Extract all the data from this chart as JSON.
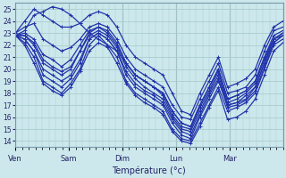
{
  "xlabel": "Température (°c)",
  "bg_color": "#cce8ec",
  "line_color": "#2233aa",
  "grid_color": "#aacccc",
  "ylim": [
    13.5,
    25.5
  ],
  "yticks": [
    14,
    15,
    16,
    17,
    18,
    19,
    20,
    21,
    22,
    23,
    24,
    25
  ],
  "x_day_labels": [
    "Ven",
    "Sam",
    "Dim",
    "Lun",
    "Mar"
  ],
  "x_day_positions": [
    0,
    24,
    48,
    72,
    96
  ],
  "xlim": [
    0,
    120
  ],
  "lines": [
    [
      22.8,
      22.5,
      21.5,
      19.5,
      19.0,
      18.5,
      19.2,
      20.5,
      22.5,
      23.0,
      22.5,
      21.5,
      19.5,
      18.5,
      18.0,
      17.5,
      17.0,
      15.5,
      14.5,
      14.2,
      16.0,
      17.5,
      19.0,
      17.0,
      17.2,
      17.5,
      18.5,
      20.5,
      22.5,
      22.8
    ],
    [
      22.8,
      22.2,
      21.0,
      19.0,
      18.5,
      18.0,
      18.8,
      20.0,
      22.0,
      22.8,
      22.0,
      21.0,
      19.0,
      18.0,
      17.5,
      17.0,
      16.5,
      15.0,
      14.2,
      14.0,
      15.5,
      17.0,
      18.5,
      16.5,
      16.8,
      17.2,
      18.0,
      20.0,
      22.0,
      22.5
    ],
    [
      22.8,
      22.8,
      22.0,
      20.5,
      20.0,
      19.5,
      20.0,
      21.5,
      23.0,
      23.5,
      23.0,
      22.0,
      20.5,
      19.5,
      19.0,
      18.5,
      18.0,
      16.5,
      15.5,
      15.2,
      17.0,
      18.5,
      20.0,
      17.5,
      17.8,
      18.2,
      19.0,
      21.0,
      22.8,
      23.2
    ],
    [
      23.0,
      23.5,
      23.8,
      22.5,
      22.0,
      21.5,
      21.8,
      22.5,
      23.5,
      23.8,
      23.5,
      22.5,
      21.0,
      20.0,
      19.5,
      19.0,
      18.5,
      17.0,
      16.0,
      15.8,
      17.5,
      19.0,
      20.5,
      18.0,
      18.2,
      18.5,
      19.5,
      21.5,
      23.2,
      23.5
    ],
    [
      23.0,
      24.0,
      25.0,
      24.5,
      24.0,
      23.5,
      23.5,
      23.8,
      24.5,
      24.8,
      24.5,
      23.5,
      22.0,
      21.0,
      20.5,
      20.0,
      19.5,
      18.0,
      16.5,
      16.2,
      18.0,
      19.5,
      21.0,
      18.5,
      18.8,
      19.2,
      20.0,
      22.0,
      23.5,
      24.0
    ],
    [
      22.8,
      23.2,
      24.5,
      24.8,
      25.2,
      25.0,
      24.5,
      23.8,
      23.0,
      22.5,
      22.0,
      21.5,
      20.5,
      19.5,
      19.0,
      18.5,
      18.0,
      16.5,
      15.5,
      15.2,
      17.0,
      18.5,
      20.0,
      17.5,
      17.8,
      18.2,
      19.0,
      21.0,
      22.5,
      23.0
    ],
    [
      22.8,
      22.5,
      21.5,
      20.0,
      19.5,
      19.0,
      19.5,
      20.8,
      22.5,
      23.0,
      22.5,
      21.5,
      19.8,
      18.8,
      18.2,
      17.8,
      17.2,
      15.8,
      14.8,
      14.5,
      16.2,
      17.8,
      19.2,
      16.8,
      17.0,
      17.4,
      18.2,
      20.2,
      22.2,
      22.8
    ],
    [
      22.8,
      22.0,
      20.5,
      18.8,
      18.2,
      17.8,
      18.5,
      19.8,
      21.5,
      22.2,
      21.8,
      20.5,
      18.8,
      17.8,
      17.2,
      16.8,
      16.2,
      14.8,
      14.0,
      13.8,
      15.2,
      16.8,
      18.2,
      15.8,
      16.0,
      16.5,
      17.5,
      19.5,
      21.5,
      22.2
    ],
    [
      22.8,
      23.0,
      22.5,
      21.2,
      20.8,
      20.2,
      20.8,
      22.0,
      23.2,
      23.5,
      23.2,
      22.2,
      20.5,
      19.5,
      19.0,
      18.5,
      17.8,
      16.2,
      15.2,
      15.0,
      16.8,
      18.2,
      19.8,
      17.2,
      17.5,
      18.0,
      18.8,
      20.8,
      22.5,
      23.0
    ],
    [
      22.8,
      22.8,
      22.2,
      20.8,
      20.2,
      19.8,
      20.2,
      21.5,
      22.8,
      23.2,
      22.8,
      21.8,
      20.2,
      19.2,
      18.5,
      18.0,
      17.5,
      16.0,
      15.0,
      14.8,
      16.5,
      18.0,
      19.5,
      17.0,
      17.2,
      17.8,
      18.5,
      20.5,
      22.2,
      22.8
    ]
  ],
  "marker_size": 3,
  "line_width": 0.9
}
